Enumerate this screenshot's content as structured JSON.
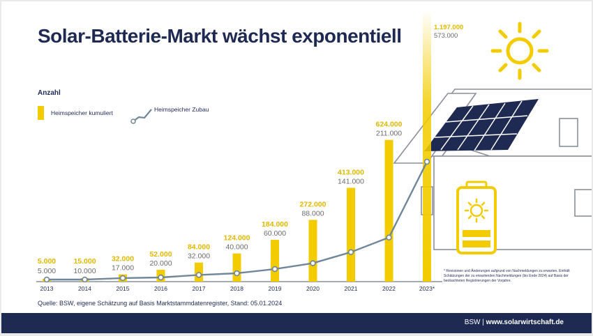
{
  "title": "Solar-Batterie-Markt wächst exponentiell",
  "source_note": "Quelle: BSW, eigene Schätzung auf Basis Marktstammdatenregister, Stand: 05.01.2024",
  "footnote": "* Revisionen und Änderungen aufgrund von Nachmeldungen zu erwarten. Enthält Schätzungen der zu erwartenden Nachmeldungen (bis Ende 2024) auf Basis der beobachteten Registrierungen der Vorjahre.",
  "footer": {
    "org": "BSW",
    "separator": "|",
    "url": "www.solarwirtschaft.de"
  },
  "colors": {
    "bar": "#f2cc00",
    "line": "#6f8799",
    "navy": "#1f2a52",
    "gray_text": "#6a6a6a"
  },
  "chart_data": {
    "type": "bar",
    "ylabel": "Anzahl",
    "categories": [
      "2013",
      "2014",
      "2015",
      "2016",
      "2017",
      "2018",
      "2019",
      "2020",
      "2021",
      "2022",
      "2023*"
    ],
    "series": [
      {
        "name": "Heimspeicher kumuliert",
        "type": "bar",
        "values": [
          5000,
          15000,
          32000,
          52000,
          84000,
          124000,
          184000,
          272000,
          413000,
          624000,
          1197000
        ],
        "labels": [
          "5.000",
          "15.000",
          "32.000",
          "52.000",
          "84.000",
          "124.000",
          "184.000",
          "272.000",
          "413.000",
          "624.000",
          "1.197.000"
        ]
      },
      {
        "name": "Heimspeicher Zubau",
        "type": "line",
        "values": [
          5000,
          10000,
          17000,
          20000,
          32000,
          40000,
          60000,
          88000,
          141000,
          211000,
          573000
        ],
        "labels": [
          "5.000",
          "10.000",
          "17.000",
          "20.000",
          "32.000",
          "40.000",
          "60.000",
          "88.000",
          "141.000",
          "211.000",
          "573.000"
        ]
      }
    ],
    "legend": "top-left",
    "grid": false
  }
}
